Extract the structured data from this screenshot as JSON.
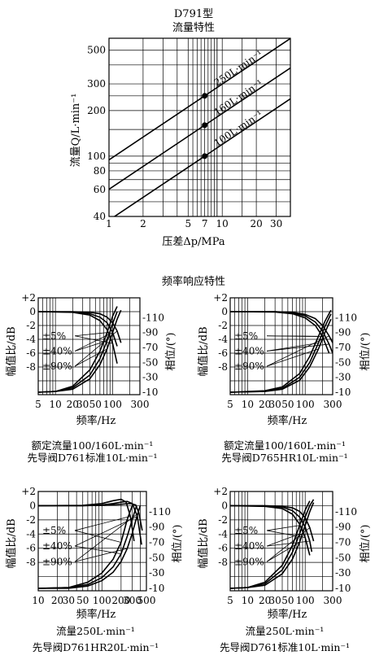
{
  "flow": {
    "title": "D791型",
    "subtitle": "流量特性",
    "ylabel": "流量Q/L·min⁻¹",
    "xlabel": "压差Δp/MPa"
  },
  "freq_title": "频率响应特性",
  "panels": [
    {
      "ylabel_left": "幅值比/dB",
      "ylabel_right": "相位/(°)",
      "xlabel": "频率/Hz",
      "caption1": "额定流量100/160L·min⁻¹",
      "caption2": "先导阀D761标准10L·min⁻¹"
    },
    {
      "ylabel_left": "幅值比/dB",
      "ylabel_right": "相位/(°)",
      "xlabel": "频率/Hz",
      "caption1": "额定流量100/160L·min⁻¹",
      "caption2": "先导阀D765HR10L·min⁻¹"
    },
    {
      "ylabel_left": "幅值比/dB",
      "ylabel_right": "相位/(°)",
      "xlabel": "频率/Hz",
      "caption1": "流量250L·min⁻¹",
      "caption2": "先导阀D761HR20L·min⁻¹"
    },
    {
      "ylabel_left": "幅值比/dB",
      "ylabel_right": "相位/(°)",
      "xlabel": "频率/Hz",
      "caption1": "流量250L·min⁻¹",
      "caption2": "先导阀D761标准10L·min⁻¹"
    }
  ],
  "chart_data": [
    {
      "type": "line",
      "title": "D791型",
      "subtitle": "流量特性",
      "xlabel": "压差Δp/MPa",
      "ylabel": "流量Q/L·min⁻¹",
      "xscale": "log",
      "yscale": "log",
      "xlim": [
        1,
        40
      ],
      "ylim": [
        40,
        600
      ],
      "xticks": [
        1,
        2,
        5,
        7,
        10,
        20,
        30
      ],
      "yticks": [
        40,
        60,
        80,
        100,
        200,
        300,
        500
      ],
      "grid": true,
      "series": [
        {
          "name": "250L·min⁻¹",
          "x": [
            1,
            7,
            40
          ],
          "y": [
            94.5,
            250,
            598
          ]
        },
        {
          "name": "160L·min⁻¹",
          "x": [
            1,
            7,
            40
          ],
          "y": [
            60.5,
            160,
            382
          ]
        },
        {
          "name": "100L·min⁻¹",
          "x": [
            1,
            7,
            40
          ],
          "y": [
            37.8,
            100,
            239
          ]
        }
      ],
      "markers": [
        {
          "x": 7,
          "y": 250
        },
        {
          "x": 7,
          "y": 160
        },
        {
          "x": 7,
          "y": 100
        }
      ]
    },
    {
      "type": "line",
      "title": "频率响应特性",
      "xlabel": "频率/Hz",
      "ylabel": "幅值比/dB",
      "y2label": "相位/(°)",
      "xscale": "log",
      "xlim": [
        5,
        300
      ],
      "xticks": [
        5,
        10,
        20,
        30,
        50,
        100,
        300
      ],
      "ylim": [
        -12,
        2
      ],
      "yticks": [
        2,
        0,
        -2,
        -4,
        -6,
        -8
      ],
      "y2lim": [
        -10,
        -130
      ],
      "y2ticks": [
        -110,
        -90,
        -70,
        -50,
        -30,
        -10
      ],
      "grid": true,
      "caption": [
        "额定流量100/160L·min⁻¹",
        "先导阀D761标准10L·min⁻¹"
      ],
      "series": [
        {
          "name": "±5%",
          "axis": "amplitude",
          "x": [
            5,
            20,
            40,
            60,
            80,
            100,
            120
          ],
          "y": [
            0,
            -0.1,
            -0.5,
            -1.3,
            -2.6,
            -4.6,
            -7.5
          ]
        },
        {
          "name": "±40%",
          "axis": "amplitude",
          "x": [
            5,
            20,
            40,
            60,
            80,
            100,
            120
          ],
          "y": [
            0,
            -0.05,
            -0.3,
            -0.8,
            -1.6,
            -3.0,
            -5.0
          ]
        },
        {
          "name": "±90%",
          "axis": "amplitude",
          "x": [
            5,
            20,
            40,
            60,
            80,
            100,
            120,
            140
          ],
          "y": [
            0,
            0,
            -0.1,
            -0.3,
            -0.8,
            -1.6,
            -2.8,
            -4.5
          ]
        },
        {
          "name": "±5%",
          "axis": "phase",
          "x": [
            5,
            10,
            20,
            40,
            60,
            80,
            100,
            120
          ],
          "y": [
            -10,
            -11,
            -18,
            -40,
            -65,
            -90,
            -112,
            -125
          ]
        },
        {
          "name": "±40%",
          "axis": "phase",
          "x": [
            5,
            10,
            20,
            40,
            60,
            80,
            100,
            120
          ],
          "y": [
            -10,
            -11,
            -16,
            -33,
            -55,
            -79,
            -102,
            -118
          ]
        },
        {
          "name": "±90%",
          "axis": "phase",
          "x": [
            5,
            10,
            20,
            40,
            60,
            80,
            100,
            120,
            140
          ],
          "y": [
            -10,
            -11,
            -14,
            -28,
            -47,
            -68,
            -90,
            -108,
            -120
          ]
        }
      ]
    },
    {
      "type": "line",
      "xlabel": "频率/Hz",
      "ylabel": "幅值比/dB",
      "y2label": "相位/(°)",
      "xscale": "log",
      "xlim": [
        5,
        300
      ],
      "xticks": [
        5,
        10,
        20,
        30,
        50,
        100,
        300
      ],
      "ylim": [
        -12,
        2
      ],
      "yticks": [
        2,
        0,
        -2,
        -4,
        -6,
        -8
      ],
      "y2lim": [
        -10,
        -130
      ],
      "y2ticks": [
        -110,
        -90,
        -70,
        -50,
        -30,
        -10
      ],
      "grid": true,
      "caption": [
        "额定流量100/160L·min⁻¹",
        "先导阀D765HR10L·min⁻¹"
      ],
      "series": [
        {
          "name": "±5%",
          "axis": "amplitude",
          "x": [
            5,
            30,
            60,
            100,
            150,
            200,
            260
          ],
          "y": [
            0,
            -0.05,
            -0.3,
            -0.9,
            -2.0,
            -3.6,
            -6.0
          ]
        },
        {
          "name": "±40%",
          "axis": "amplitude",
          "x": [
            5,
            30,
            60,
            100,
            150,
            200,
            260,
            300
          ],
          "y": [
            0,
            0,
            -0.2,
            -0.6,
            -1.5,
            -2.8,
            -4.7,
            -6.0
          ]
        },
        {
          "name": "±90%",
          "axis": "amplitude",
          "x": [
            5,
            30,
            60,
            100,
            150,
            200,
            260,
            300
          ],
          "y": [
            0,
            0,
            -0.1,
            -0.4,
            -1.0,
            -2.0,
            -3.5,
            -4.5
          ]
        },
        {
          "name": "±5%",
          "axis": "phase",
          "x": [
            5,
            20,
            40,
            80,
            120,
            170,
            220,
            280
          ],
          "y": [
            -10,
            -12,
            -17,
            -35,
            -58,
            -85,
            -105,
            -120
          ]
        },
        {
          "name": "±40%",
          "axis": "phase",
          "x": [
            5,
            20,
            40,
            80,
            120,
            170,
            220,
            280
          ],
          "y": [
            -10,
            -11,
            -15,
            -30,
            -50,
            -76,
            -98,
            -115
          ]
        },
        {
          "name": "±90%",
          "axis": "phase",
          "x": [
            5,
            20,
            40,
            80,
            120,
            170,
            220,
            280
          ],
          "y": [
            -10,
            -11,
            -14,
            -26,
            -44,
            -68,
            -90,
            -108
          ]
        }
      ]
    },
    {
      "type": "line",
      "xlabel": "频率/Hz",
      "ylabel": "幅值比/dB",
      "y2label": "相位/(°)",
      "xscale": "log",
      "xlim": [
        10,
        500
      ],
      "xticks": [
        10,
        20,
        30,
        50,
        100,
        200,
        300,
        500
      ],
      "ylim": [
        -12,
        2
      ],
      "yticks": [
        2,
        0,
        -2,
        -4,
        -6,
        -8
      ],
      "y2lim": [
        -10,
        -130
      ],
      "y2ticks": [
        -110,
        -90,
        -70,
        -50,
        -30,
        -10
      ],
      "grid": true,
      "caption": [
        "流量250L·min⁻¹",
        "先导阀D761HR20L·min⁻¹"
      ],
      "series": [
        {
          "name": "±5%",
          "axis": "amplitude",
          "x": [
            10,
            50,
            100,
            150,
            200,
            240,
            280,
            320
          ],
          "y": [
            0,
            0.05,
            0.3,
            0.7,
            0.9,
            0.5,
            -1.5,
            -5.0
          ]
        },
        {
          "name": "±40%",
          "axis": "amplitude",
          "x": [
            10,
            50,
            100,
            150,
            200,
            250,
            300,
            360,
            420
          ],
          "y": [
            0,
            0,
            0.1,
            0.3,
            0.5,
            0.6,
            0.3,
            -1.5,
            -5.5
          ]
        },
        {
          "name": "±90%",
          "axis": "amplitude",
          "x": [
            10,
            50,
            100,
            200,
            280,
            340,
            380,
            430
          ],
          "y": [
            0,
            0,
            0.05,
            0.2,
            0.3,
            0.1,
            -1.0,
            -3.5
          ]
        },
        {
          "name": "±5%",
          "axis": "phase",
          "x": [
            10,
            30,
            60,
            100,
            150,
            200,
            250,
            300
          ],
          "y": [
            -10,
            -11,
            -18,
            -30,
            -48,
            -70,
            -100,
            -118
          ]
        },
        {
          "name": "±40%",
          "axis": "phase",
          "x": [
            10,
            30,
            60,
            100,
            150,
            200,
            250,
            300,
            350
          ],
          "y": [
            -10,
            -11,
            -15,
            -24,
            -38,
            -55,
            -78,
            -100,
            -118
          ]
        },
        {
          "name": "±90%",
          "axis": "phase",
          "x": [
            10,
            30,
            60,
            100,
            150,
            200,
            250,
            300,
            350,
            400
          ],
          "y": [
            -10,
            -10,
            -13,
            -20,
            -31,
            -45,
            -62,
            -82,
            -102,
            -118
          ]
        }
      ]
    },
    {
      "type": "line",
      "xlabel": "频率/Hz",
      "ylabel": "幅值比/dB",
      "y2label": "相位/(°)",
      "xscale": "log",
      "xlim": [
        5,
        300
      ],
      "xticks": [
        5,
        10,
        20,
        30,
        50,
        100,
        300
      ],
      "ylim": [
        -12,
        2
      ],
      "yticks": [
        2,
        0,
        -2,
        -4,
        -6,
        -8
      ],
      "y2lim": [
        -10,
        -130
      ],
      "y2ticks": [
        -110,
        -90,
        -70,
        -50,
        -30,
        -10
      ],
      "grid": true,
      "caption": [
        "流量250L·min⁻¹",
        "先导阀D761标准10L·min⁻¹"
      ],
      "series": [
        {
          "name": "±5%",
          "axis": "amplitude",
          "x": [
            5,
            20,
            40,
            60,
            80,
            100,
            120
          ],
          "y": [
            0,
            -0.1,
            -0.4,
            -1.2,
            -2.6,
            -4.5,
            -7.0
          ]
        },
        {
          "name": "±40%",
          "axis": "amplitude",
          "x": [
            5,
            20,
            40,
            60,
            80,
            100,
            120,
            130
          ],
          "y": [
            0,
            -0.05,
            -0.2,
            -0.7,
            -1.6,
            -3.0,
            -5.0,
            -6.5
          ]
        },
        {
          "name": "±90%",
          "axis": "amplitude",
          "x": [
            5,
            20,
            40,
            60,
            80,
            100,
            120,
            140
          ],
          "y": [
            0,
            0,
            -0.1,
            -0.3,
            -0.8,
            -1.7,
            -3.1,
            -5.0
          ]
        },
        {
          "name": "±5%",
          "axis": "phase",
          "x": [
            5,
            10,
            20,
            40,
            60,
            80,
            100,
            120
          ],
          "y": [
            -10,
            -11,
            -18,
            -40,
            -66,
            -92,
            -112,
            -124
          ]
        },
        {
          "name": "±40%",
          "axis": "phase",
          "x": [
            5,
            10,
            20,
            40,
            60,
            80,
            100,
            120,
            140
          ],
          "y": [
            -10,
            -11,
            -16,
            -34,
            -57,
            -81,
            -103,
            -118,
            -126
          ]
        },
        {
          "name": "±90%",
          "axis": "phase",
          "x": [
            5,
            10,
            20,
            40,
            60,
            80,
            100,
            120,
            140
          ],
          "y": [
            -10,
            -11,
            -14,
            -29,
            -48,
            -70,
            -92,
            -110,
            -122
          ]
        }
      ]
    }
  ]
}
